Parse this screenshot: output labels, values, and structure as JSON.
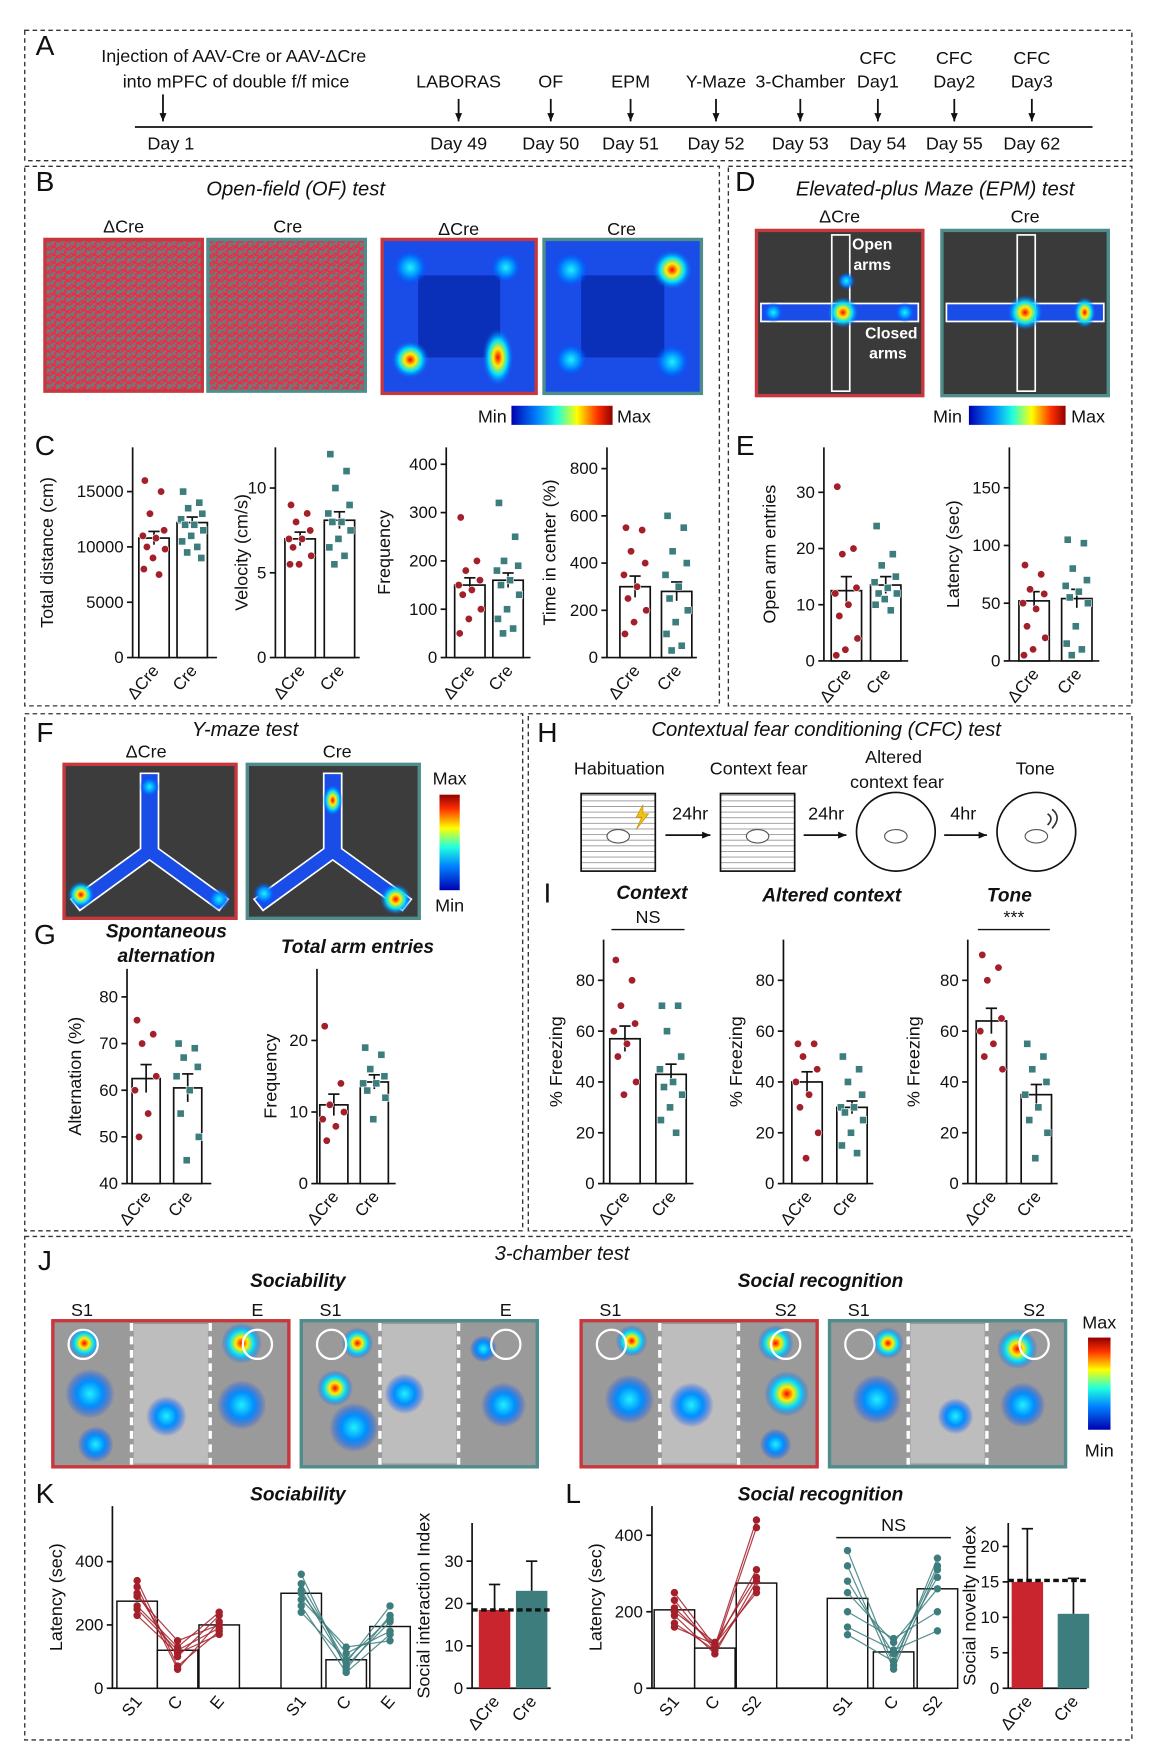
{
  "timeline": {
    "intro": [
      "Injection  of AAV-Cre or AAV-ΔCre",
      "into mPFC of double f/f mice"
    ],
    "events": [
      {
        "day": "Day 1"
      },
      {
        "label": "LABORAS",
        "day": "Day 49"
      },
      {
        "label": "OF",
        "day": "Day 50"
      },
      {
        "label": "EPM",
        "day": "Day 51"
      },
      {
        "label": "Y-Maze",
        "day": "Day 52"
      },
      {
        "label": "3-Chamber",
        "day": "Day 53"
      },
      {
        "label": [
          "CFC",
          "Day1"
        ],
        "day": "Day 54"
      },
      {
        "label": [
          "CFC",
          "Day2"
        ],
        "day": "Day 55"
      },
      {
        "label": [
          "CFC",
          "Day3"
        ],
        "day": "Day 62"
      }
    ]
  },
  "letters": [
    "A",
    "B",
    "C",
    "D",
    "E",
    "F",
    "G",
    "H",
    "I",
    "J",
    "K",
    "L"
  ],
  "titles": {
    "of": "Open-field (OF) test",
    "epm": "Elevated-plus Maze (EPM) test",
    "ymaze": "Y-maze test",
    "cfc": "Contextual fear conditioning (CFC) test",
    "three": "3-chamber test",
    "sociability": "Sociability",
    "recognition": "Social recognition"
  },
  "image_labels": {
    "dcre": "ΔCre",
    "cre": "Cre",
    "open": [
      "Open",
      "arms"
    ],
    "closed": [
      "Closed",
      "arms"
    ],
    "min": "Min",
    "max": "Max",
    "s1": "S1",
    "s2": "S2",
    "e": "E"
  },
  "cfc": {
    "steps": [
      "Habituation",
      "Context fear",
      [
        "Altered",
        "context fear"
      ],
      "Tone"
    ],
    "intervals": [
      "24hr",
      "24hr",
      "4hr"
    ]
  },
  "chart_data": [
    {
      "type": "bar",
      "ylabel": "Total distance (cm)",
      "categories": [
        "ΔCre",
        "Cre"
      ],
      "ylim": [
        0,
        19000
      ],
      "yticks": [
        0,
        5000,
        10000,
        15000
      ],
      "values": [
        10800,
        12200
      ],
      "errors": [
        600,
        500
      ],
      "colors": [
        "#a3202a",
        "#3d7d7d"
      ],
      "points": [
        [
          16000,
          15000,
          13000,
          11500,
          11000,
          10800,
          10000,
          9800,
          9000,
          8000,
          7500
        ],
        [
          15000,
          14000,
          13500,
          13000,
          12500,
          12000,
          12000,
          11500,
          11000,
          10500,
          10000,
          9500,
          9000
        ]
      ]
    },
    {
      "type": "bar",
      "ylabel": "Velocity (cm/s)",
      "categories": [
        "ΔCre",
        "Cre"
      ],
      "ylim": [
        0,
        12.4
      ],
      "yticks": [
        0,
        5,
        10
      ],
      "values": [
        7.0,
        8.1
      ],
      "errors": [
        0.4,
        0.5
      ],
      "colors": [
        "#a3202a",
        "#3d7d7d"
      ],
      "points": [
        [
          9,
          8.5,
          8,
          7.5,
          7,
          7,
          6.5,
          6,
          5.5,
          5.5
        ],
        [
          12,
          11,
          10,
          9,
          8.5,
          8,
          8,
          7.5,
          7,
          6.5,
          6,
          5.5
        ]
      ]
    },
    {
      "type": "bar",
      "ylabel": "Frequency",
      "categories": [
        "ΔCre",
        "Cre"
      ],
      "ylim": [
        0,
        435
      ],
      "yticks": [
        0,
        100,
        200,
        300,
        400
      ],
      "values": [
        150,
        160
      ],
      "errors": [
        15,
        15
      ],
      "colors": [
        "#a3202a",
        "#3d7d7d"
      ],
      "points": [
        [
          290,
          200,
          180,
          160,
          150,
          140,
          130,
          100,
          80,
          50
        ],
        [
          320,
          250,
          200,
          190,
          180,
          160,
          150,
          130,
          100,
          80,
          60,
          50
        ]
      ]
    },
    {
      "type": "bar",
      "ylabel": "Time in center (%)",
      "categories": [
        "ΔCre",
        "Cre"
      ],
      "ylim": [
        0,
        890
      ],
      "yticks": [
        0,
        200,
        400,
        600,
        800
      ],
      "values": [
        300,
        280
      ],
      "errors": [
        45,
        40
      ],
      "colors": [
        "#a3202a",
        "#3d7d7d"
      ],
      "points": [
        [
          550,
          540,
          450,
          400,
          350,
          300,
          250,
          200,
          150,
          100
        ],
        [
          600,
          550,
          450,
          400,
          350,
          300,
          250,
          200,
          150,
          100,
          50,
          30
        ]
      ]
    },
    {
      "type": "bar",
      "ylabel": "Open arm entries",
      "categories": [
        "ΔCre",
        "Cre"
      ],
      "ylim": [
        0,
        38
      ],
      "yticks": [
        0,
        10,
        20,
        30
      ],
      "values": [
        12.5,
        13.5
      ],
      "errors": [
        2.5,
        1.5
      ],
      "colors": [
        "#a3202a",
        "#3d7d7d"
      ],
      "points": [
        [
          31,
          20,
          19,
          13,
          12,
          10,
          8,
          4,
          2,
          1
        ],
        [
          24,
          19,
          17,
          15,
          14,
          13,
          12,
          12,
          11,
          10,
          9
        ]
      ]
    },
    {
      "type": "bar",
      "ylabel": "Latency (sec)",
      "categories": [
        "ΔCre",
        "Cre"
      ],
      "ylim": [
        0,
        185
      ],
      "yticks": [
        0,
        50,
        100,
        150
      ],
      "values": [
        52,
        54
      ],
      "errors": [
        8,
        8
      ],
      "colors": [
        "#a3202a",
        "#3d7d7d"
      ],
      "points": [
        [
          83,
          75,
          62,
          58,
          50,
          45,
          30,
          20,
          10,
          5
        ],
        [
          105,
          102,
          80,
          70,
          65,
          60,
          55,
          50,
          30,
          15,
          10,
          5
        ]
      ]
    },
    {
      "type": "bar",
      "title": [
        "Spontaneous",
        "alternation"
      ],
      "ylabel": "Alternation (%)",
      "categories": [
        "ΔCre",
        "Cre"
      ],
      "ylim": [
        40,
        86
      ],
      "yticks": [
        40,
        50,
        60,
        70,
        80
      ],
      "values": [
        62.5,
        60.5
      ],
      "errors": [
        3,
        3
      ],
      "colors": [
        "#a3202a",
        "#3d7d7d"
      ],
      "points": [
        [
          75,
          72,
          70,
          63,
          60,
          55,
          50
        ],
        [
          70,
          69,
          67,
          65,
          63,
          60,
          55,
          50,
          45
        ]
      ]
    },
    {
      "type": "bar",
      "title": "Total arm entries",
      "ylabel": "Frequency",
      "categories": [
        "ΔCre",
        "Cre"
      ],
      "ylim": [
        0,
        30
      ],
      "yticks": [
        0,
        10,
        20
      ],
      "values": [
        11,
        14.2
      ],
      "errors": [
        1.5,
        1
      ],
      "colors": [
        "#a3202a",
        "#3d7d7d"
      ],
      "points": [
        [
          22,
          14,
          11,
          10,
          9,
          8,
          6
        ],
        [
          19,
          18,
          16,
          15,
          14,
          14,
          13,
          12,
          9
        ]
      ]
    },
    {
      "type": "bar",
      "title": "Context",
      "annotation": "NS",
      "ylabel": "% Freezing",
      "categories": [
        "ΔCre",
        "Cre"
      ],
      "ylim": [
        0,
        96
      ],
      "yticks": [
        0,
        20,
        40,
        60,
        80
      ],
      "values": [
        57,
        43
      ],
      "errors": [
        5,
        4
      ],
      "colors": [
        "#a3202a",
        "#3d7d7d"
      ],
      "points": [
        [
          88,
          80,
          70,
          63,
          60,
          55,
          50,
          40,
          35
        ],
        [
          70,
          70,
          60,
          50,
          45,
          40,
          38,
          35,
          30,
          25,
          20
        ]
      ]
    },
    {
      "type": "bar",
      "title": "Altered context",
      "ylabel": "% Freezing",
      "categories": [
        "ΔCre",
        "Cre"
      ],
      "ylim": [
        0,
        96
      ],
      "yticks": [
        0,
        20,
        40,
        60,
        80
      ],
      "values": [
        40,
        30
      ],
      "errors": [
        4,
        2.5
      ],
      "colors": [
        "#a3202a",
        "#3d7d7d"
      ],
      "points": [
        [
          55,
          55,
          50,
          45,
          40,
          35,
          30,
          20,
          10
        ],
        [
          50,
          45,
          40,
          35,
          30,
          30,
          28,
          25,
          20,
          15,
          12
        ]
      ]
    },
    {
      "type": "bar",
      "title": "Tone",
      "annotation": "***",
      "ylabel": "% Freezing",
      "categories": [
        "ΔCre",
        "Cre"
      ],
      "ylim": [
        0,
        96
      ],
      "yticks": [
        0,
        20,
        40,
        60,
        80
      ],
      "values": [
        64,
        35
      ],
      "errors": [
        5,
        4
      ],
      "colors": [
        "#a3202a",
        "#3d7d7d"
      ],
      "points": [
        [
          90,
          85,
          80,
          65,
          60,
          55,
          50,
          45
        ],
        [
          55,
          50,
          45,
          40,
          35,
          30,
          25,
          20,
          10
        ]
      ]
    },
    {
      "type": "paired",
      "ylabel": "Latency (sec)",
      "categories": [
        "S1",
        "C",
        "E"
      ],
      "ylim": [
        0,
        575
      ],
      "yticks": [
        0,
        200,
        400
      ],
      "groups": [
        {
          "color": "#a3202a",
          "values": [
            275,
            120,
            200
          ],
          "subjects": [
            [
              340,
              70,
              180
            ],
            [
              320,
              60,
              210
            ],
            [
              300,
              100,
              230
            ],
            [
              290,
              150,
              200
            ],
            [
              260,
              130,
              240
            ],
            [
              250,
              120,
              190
            ],
            [
              230,
              110,
              170
            ]
          ]
        },
        {
          "color": "#3d7d7d",
          "values": [
            300,
            90,
            195
          ],
          "subjects": [
            [
              360,
              60,
              230
            ],
            [
              330,
              80,
              260
            ],
            [
              310,
              70,
              210
            ],
            [
              300,
              110,
              180
            ],
            [
              280,
              130,
              150
            ],
            [
              260,
              50,
              170
            ],
            [
              240,
              90,
              220
            ]
          ]
        }
      ]
    },
    {
      "type": "bar",
      "filled": true,
      "ylabel": "Social interaction Index",
      "categories": [
        "ΔCre",
        "Cre"
      ],
      "ylim": [
        0,
        39
      ],
      "yticks": [
        0,
        10,
        20,
        30
      ],
      "values": [
        18.5,
        23
      ],
      "errors": [
        6,
        7
      ],
      "reference": 18.5,
      "colors": [
        "#c8252e",
        "#3d7d7d"
      ]
    },
    {
      "type": "paired",
      "annotation": "NS",
      "ylabel": "Latency (sec)",
      "categories": [
        "S1",
        "C",
        "S2"
      ],
      "ylim": [
        0,
        476
      ],
      "yticks": [
        0,
        200,
        400
      ],
      "groups": [
        {
          "color": "#a3202a",
          "values": [
            205,
            105,
            275
          ],
          "subjects": [
            [
              250,
              110,
              440
            ],
            [
              230,
              100,
              420
            ],
            [
              210,
              110,
              310
            ],
            [
              200,
              120,
              290
            ],
            [
              190,
              90,
              280
            ],
            [
              170,
              100,
              260
            ],
            [
              160,
              115,
              250
            ]
          ]
        },
        {
          "color": "#3d7d7d",
          "values": [
            235,
            95,
            260
          ],
          "subjects": [
            [
              360,
              60,
              340
            ],
            [
              320,
              50,
              310
            ],
            [
              280,
              90,
              290
            ],
            [
              250,
              120,
              260
            ],
            [
              200,
              130,
              200
            ],
            [
              160,
              100,
              150
            ],
            [
              140,
              70,
              320
            ]
          ]
        }
      ]
    },
    {
      "type": "bar",
      "filled": true,
      "ylabel": "Social novelty Index",
      "categories": [
        "ΔCre",
        "Cre"
      ],
      "ylim": [
        0,
        23.3
      ],
      "yticks": [
        0,
        5,
        10,
        15,
        20
      ],
      "values": [
        15,
        10.5
      ],
      "errors": [
        7.5,
        5
      ],
      "reference": 15.2,
      "colors": [
        "#c8252e",
        "#3d7d7d"
      ]
    }
  ]
}
